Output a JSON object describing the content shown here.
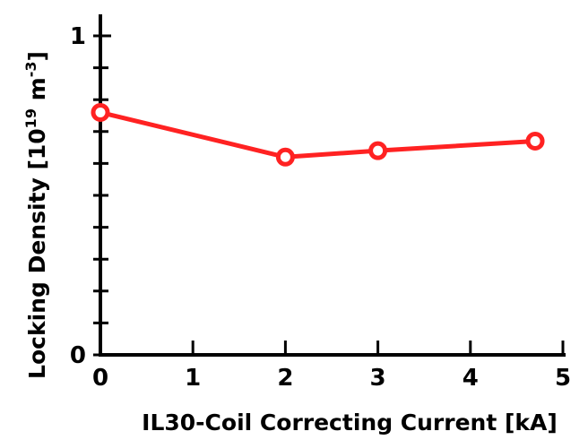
{
  "chart_data": {
    "type": "line",
    "xlabel": "IL30-Coil Correcting Current  [kA]",
    "ylabel_main": "Locking Density  [10",
    "ylabel_exp": "19",
    "ylabel_unit": " m",
    "ylabel_unit_exp": "-3",
    "ylabel_close": "]",
    "xlim": [
      0,
      5
    ],
    "ylim": [
      0,
      1.0
    ],
    "x_ticks": [
      0,
      1,
      2,
      3,
      4,
      5
    ],
    "y_tick_labels": [
      {
        "value": 0,
        "label": "0"
      },
      {
        "value": 1,
        "label": "1"
      }
    ],
    "y_minor_ticks": [
      0.1,
      0.2,
      0.3,
      0.4,
      0.5,
      0.6,
      0.7,
      0.8,
      0.9
    ],
    "grid": false,
    "series": [
      {
        "color": "#ff2222",
        "marker": "circle",
        "x": [
          0,
          2,
          3,
          4.7
        ],
        "y": [
          0.76,
          0.62,
          0.64,
          0.67
        ]
      }
    ]
  }
}
